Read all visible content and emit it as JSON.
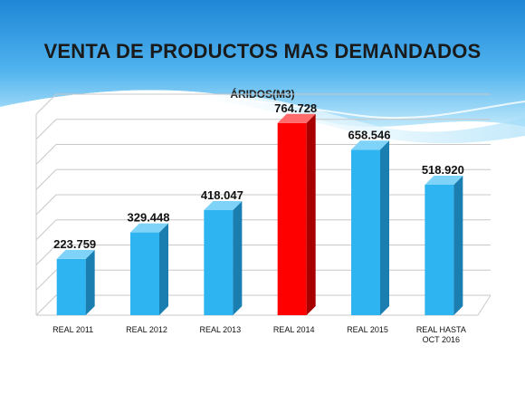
{
  "slide": {
    "title": "VENTA DE PRODUCTOS MAS DEMANDADOS",
    "subtitle": "ÁRIDOS(M3)"
  },
  "colors": {
    "bar": "#2eb4f0",
    "bar_side": "#1a7fb0",
    "bar_top": "#7fd3f8",
    "highlight": "#ff0000",
    "highlight_side": "#a80000",
    "highlight_top": "#ff6a6a",
    "banner_light": "#cfeefc",
    "banner_mid": "#7fcdf3",
    "banner_dark": "#2f9be0"
  },
  "chart_data": {
    "type": "bar",
    "title": "VENTA DE PRODUCTOS MAS DEMANDADOS",
    "subtitle": "ÁRIDOS(M3)",
    "categories": [
      "REAL 2011",
      "REAL 2012",
      "REAL  2013",
      "REAL 2014",
      "REAL 2015",
      "REAL HASTA OCT 2016"
    ],
    "category_lines": [
      [
        "REAL 2011"
      ],
      [
        "REAL 2012"
      ],
      [
        "REAL  2013"
      ],
      [
        "REAL 2014"
      ],
      [
        "REAL 2015"
      ],
      [
        "REAL HASTA",
        "OCT 2016"
      ]
    ],
    "values": [
      223759,
      329448,
      418047,
      764728,
      658546,
      518920
    ],
    "value_labels": [
      "223.759",
      "329.448",
      "418.047",
      "764.728",
      "658.546",
      "518.920"
    ],
    "highlight_index": 3,
    "ylim": [
      0,
      800000
    ],
    "grid": true,
    "legend": "none",
    "style": "3d-column"
  }
}
